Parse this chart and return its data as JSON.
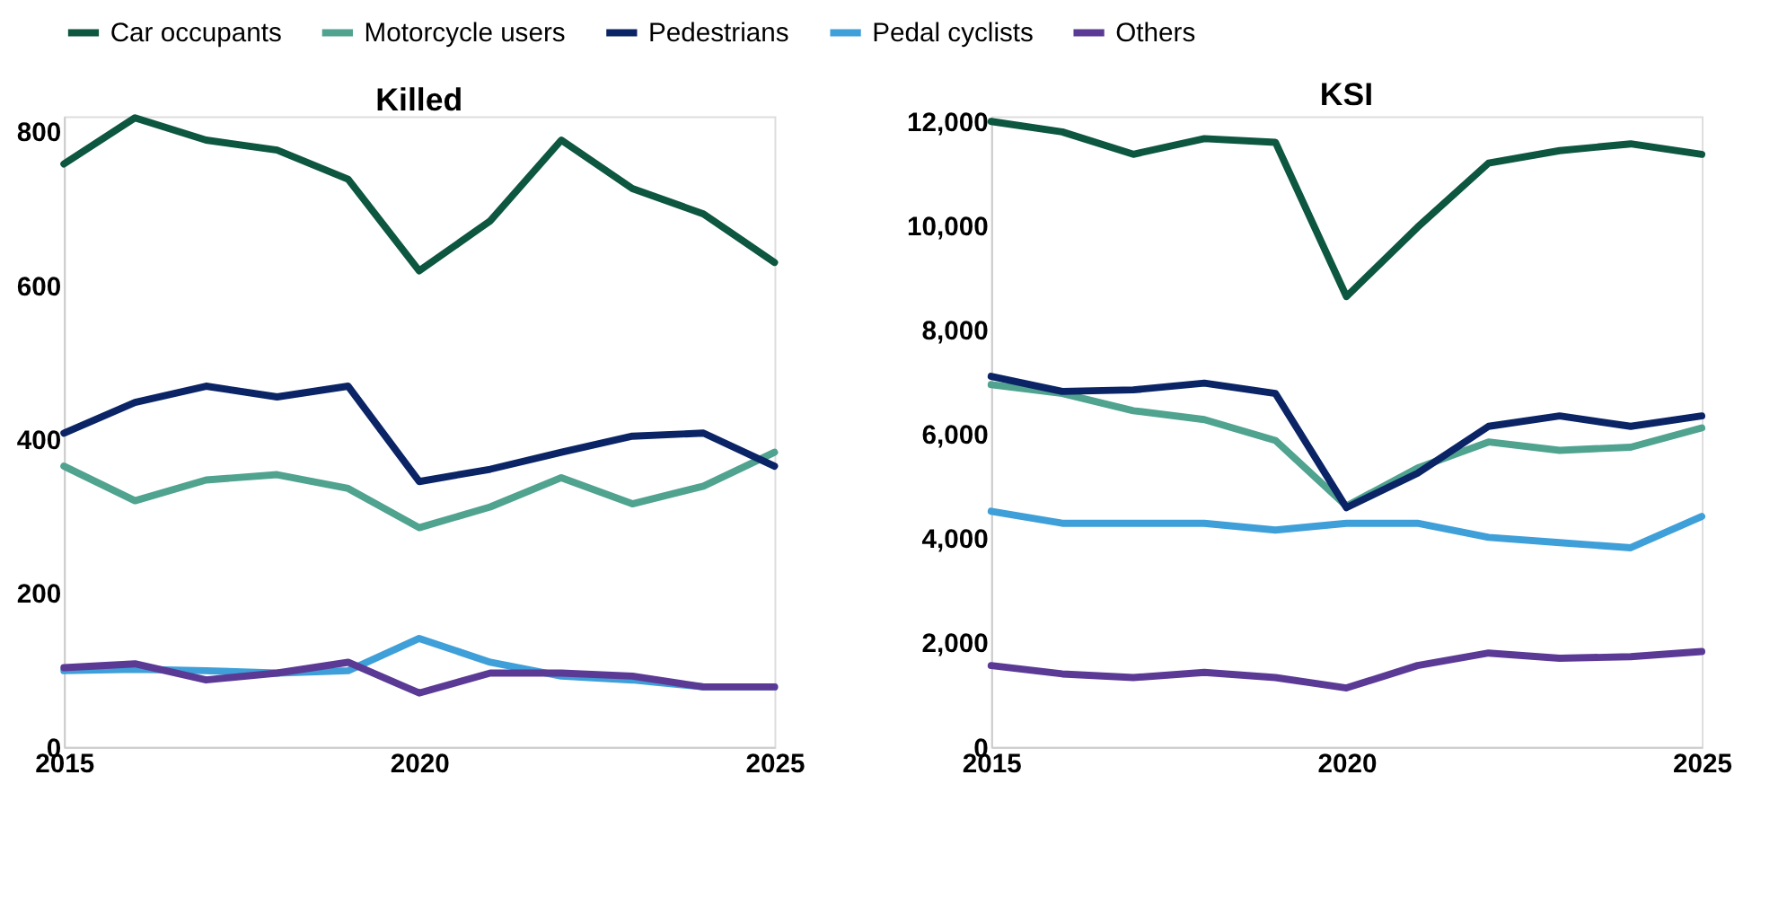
{
  "chart_data": [
    {
      "type": "line",
      "title": "Killed",
      "x": [
        2015,
        2016,
        2017,
        2018,
        2019,
        2020,
        2021,
        2022,
        2023,
        2024,
        2025
      ],
      "xlim": [
        2015,
        2025
      ],
      "xticks": [
        2015,
        2020,
        2025
      ],
      "ylim": [
        0,
        820
      ],
      "yticks": [
        0,
        200,
        400,
        600,
        800
      ],
      "grid": false,
      "legend": "top",
      "line_style": "solid",
      "marker": "none",
      "series": [
        {
          "name": "Car occupants",
          "color": "#0d5640",
          "values": [
            758,
            818,
            789,
            776,
            738,
            619,
            684,
            789,
            726,
            693,
            630
          ]
        },
        {
          "name": "Motorcycle users",
          "color": "#4fa38f",
          "values": [
            365,
            320,
            347,
            354,
            336,
            285,
            312,
            350,
            316,
            339,
            383
          ]
        },
        {
          "name": "Pedestrians",
          "color": "#0a2466",
          "values": [
            408,
            448,
            469,
            455,
            469,
            345,
            361,
            383,
            404,
            408,
            365
          ]
        },
        {
          "name": "Pedal cyclists",
          "color": "#3f9fd8",
          "values": [
            99,
            101,
            99,
            96,
            99,
            141,
            110,
            92,
            87,
            78,
            78
          ]
        },
        {
          "name": "Others",
          "color": "#5b3a96",
          "values": [
            103,
            108,
            87,
            96,
            110,
            70,
            96,
            96,
            92,
            78,
            78
          ]
        }
      ]
    },
    {
      "type": "line",
      "title": "KSI",
      "x": [
        2015,
        2016,
        2017,
        2018,
        2019,
        2020,
        2021,
        2022,
        2023,
        2024,
        2025
      ],
      "xlim": [
        2015,
        2025
      ],
      "xticks": [
        2015,
        2020,
        2025
      ],
      "ylim": [
        0,
        12100
      ],
      "yticks": [
        0,
        {
          "value": 2000,
          "label": "2,000"
        },
        {
          "value": 4000,
          "label": "4,000"
        },
        {
          "value": 6000,
          "label": "6,000"
        },
        {
          "value": 8000,
          "label": "8,000"
        },
        {
          "value": 10000,
          "label": "10,000"
        },
        {
          "value": 12000,
          "label": "12,000"
        }
      ],
      "grid": false,
      "legend": false,
      "line_style": "solid",
      "marker": "none",
      "series": [
        {
          "name": "Car occupants",
          "color": "#0d5640",
          "values": [
            12000,
            11800,
            11370,
            11670,
            11600,
            8640,
            9970,
            11200,
            11440,
            11570,
            11370
          ]
        },
        {
          "name": "Motorcycle users",
          "color": "#4fa38f",
          "values": [
            6950,
            6780,
            6450,
            6280,
            5880,
            4620,
            5350,
            5850,
            5690,
            5750,
            6120
          ]
        },
        {
          "name": "Pedestrians",
          "color": "#0a2466",
          "values": [
            7110,
            6820,
            6850,
            6980,
            6780,
            4590,
            5250,
            6150,
            6350,
            6150,
            6350
          ]
        },
        {
          "name": "Pedal cyclists",
          "color": "#3f9fd8",
          "values": [
            4520,
            4290,
            4290,
            4290,
            4160,
            4290,
            4290,
            4020,
            3920,
            3820,
            4420
          ]
        },
        {
          "name": "Others",
          "color": "#5b3a96",
          "values": [
            1560,
            1400,
            1330,
            1430,
            1330,
            1130,
            1560,
            1800,
            1700,
            1730,
            1830
          ]
        }
      ]
    }
  ]
}
